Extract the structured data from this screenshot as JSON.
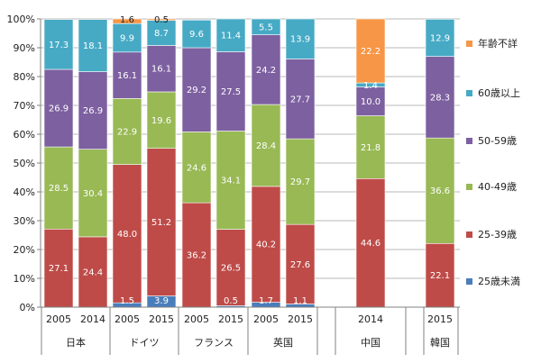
{
  "chart_data": {
    "type": "bar",
    "stacked": true,
    "percent": true,
    "ylim": [
      0,
      100
    ],
    "yticks": [
      "0%",
      "10%",
      "20%",
      "30%",
      "40%",
      "50%",
      "60%",
      "70%",
      "80%",
      "90%",
      "100%"
    ],
    "grid": true,
    "legend_position": "right",
    "categories": [
      "2005",
      "2014",
      "2005",
      "2015",
      "2005",
      "2015",
      "2005",
      "2015",
      "2014",
      "2015"
    ],
    "groups": [
      {
        "label": "日本",
        "members": [
          0,
          1
        ]
      },
      {
        "label": "ドイツ",
        "members": [
          2,
          3
        ]
      },
      {
        "label": "フランス",
        "members": [
          4,
          5
        ]
      },
      {
        "label": "英国",
        "members": [
          6,
          7
        ]
      },
      {
        "label": "中国",
        "members": [
          8
        ]
      },
      {
        "label": "韓国",
        "members": [
          9
        ]
      }
    ],
    "series": [
      {
        "name": "25歳未満",
        "color": "#4a7ebb",
        "values": [
          0,
          0,
          1.5,
          3.9,
          0,
          0.5,
          1.7,
          1.1,
          0,
          0
        ],
        "labels": [
          "",
          "",
          "1.5",
          "3.9",
          "",
          "0.5",
          "1.7",
          "1.1",
          "",
          ""
        ]
      },
      {
        "name": "25-39歳",
        "color": "#be4b48",
        "values": [
          27.1,
          24.4,
          48.0,
          51.2,
          36.2,
          26.5,
          40.2,
          27.6,
          44.6,
          22.1
        ],
        "labels": [
          "27.1",
          "24.4",
          "48.0",
          "51.2",
          "36.2",
          "26.5",
          "40.2",
          "27.6",
          "44.6",
          "22.1"
        ]
      },
      {
        "name": "40-49歳",
        "color": "#98b954",
        "values": [
          28.5,
          30.4,
          22.9,
          19.6,
          24.6,
          34.1,
          28.4,
          29.7,
          21.8,
          36.6
        ],
        "labels": [
          "28.5",
          "30.4",
          "22.9",
          "19.6",
          "24.6",
          "34.1",
          "28.4",
          "29.7",
          "21.8",
          "36.6"
        ]
      },
      {
        "name": "50-59歳",
        "color": "#7d60a0",
        "values": [
          26.9,
          26.9,
          16.1,
          16.1,
          29.2,
          27.5,
          24.2,
          27.7,
          10.0,
          28.3
        ],
        "labels": [
          "26.9",
          "26.9",
          "16.1",
          "16.1",
          "29.2",
          "27.5",
          "24.2",
          "27.7",
          "10.0",
          "28.3"
        ]
      },
      {
        "name": "60歳以上",
        "color": "#46aac5",
        "values": [
          17.3,
          18.1,
          9.9,
          8.7,
          9.6,
          11.4,
          5.5,
          13.9,
          1.4,
          12.9
        ],
        "labels": [
          "17.3",
          "18.1",
          "9.9",
          "8.7",
          "9.6",
          "11.4",
          "5.5",
          "13.9",
          "1.4",
          "12.9"
        ]
      },
      {
        "name": "年齢不詳",
        "color": "#f79646",
        "values": [
          0,
          0,
          1.6,
          0.5,
          0,
          0,
          0,
          0,
          22.2,
          0
        ],
        "labels": [
          "",
          "",
          "1.6",
          "0.5",
          "",
          "",
          "",
          "",
          "22.2",
          ""
        ]
      }
    ]
  }
}
